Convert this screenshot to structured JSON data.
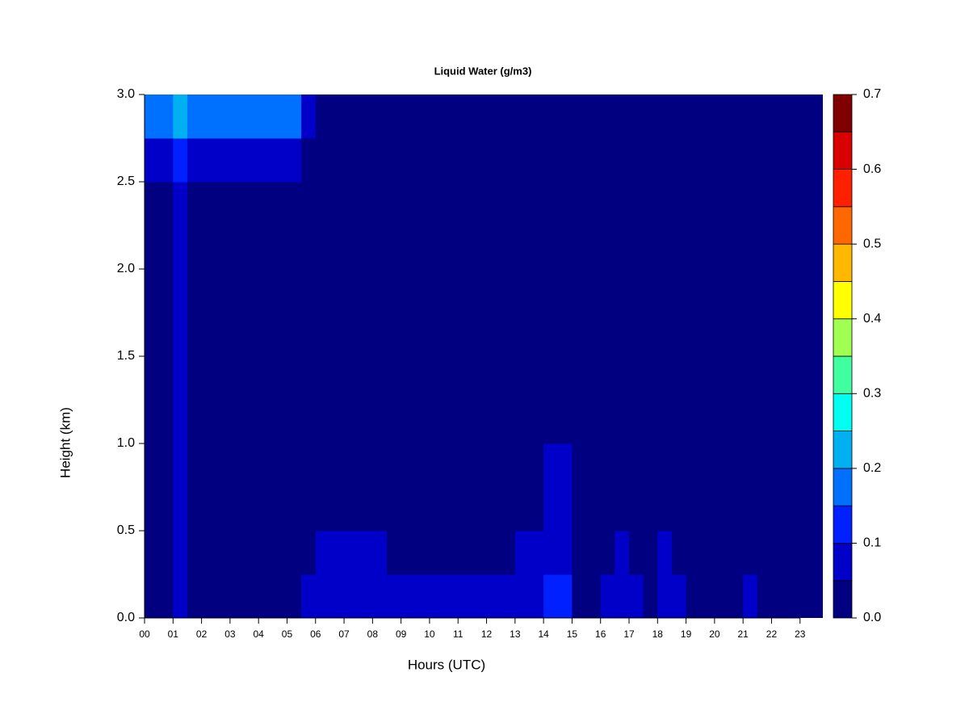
{
  "chart_data": {
    "type": "heatmap",
    "title": "Liquid Water (g/m3)",
    "x_label": "Hours (UTC)",
    "y_label": "Height (km)",
    "x": [
      0.25,
      0.75,
      1.25,
      1.75,
      2.25,
      2.75,
      3.25,
      3.75,
      4.25,
      4.75,
      5.25,
      5.75,
      6.25,
      6.75,
      7.25,
      7.75,
      8.25,
      8.75,
      9.25,
      9.75,
      10.25,
      10.75,
      11.25,
      11.75,
      12.25,
      12.75,
      13.25,
      13.75,
      14.25,
      14.75,
      15.25,
      15.75,
      16.25,
      16.75,
      17.25,
      17.75,
      18.25,
      18.75,
      19.25,
      19.75,
      20.25,
      20.75,
      21.25,
      21.75,
      22.25,
      22.75,
      23.25,
      23.75
    ],
    "y": [
      0.125,
      0.375,
      0.625,
      0.875,
      1.125,
      1.375,
      1.625,
      1.875,
      2.125,
      2.375,
      2.625,
      2.875
    ],
    "z": [
      [
        0.02,
        0.02,
        0.06,
        0.02,
        0.02,
        0.02,
        0.02,
        0.02,
        0.02,
        0.02,
        0.02,
        0.06,
        0.08,
        0.08,
        0.08,
        0.08,
        0.08,
        0.08,
        0.08,
        0.06,
        0.06,
        0.06,
        0.06,
        0.06,
        0.06,
        0.06,
        0.09,
        0.09,
        0.12,
        0.12,
        0.02,
        0.02,
        0.06,
        0.06,
        0.05,
        0.02,
        0.07,
        0.07,
        0.02,
        0.02,
        0.02,
        0.02,
        0.06,
        0.02,
        0.02,
        0.02,
        0.02,
        0.02
      ],
      [
        0.02,
        0.02,
        0.06,
        0.02,
        0.02,
        0.02,
        0.02,
        0.02,
        0.02,
        0.02,
        0.02,
        0.02,
        0.06,
        0.06,
        0.06,
        0.06,
        0.06,
        0.02,
        0.02,
        0.02,
        0.02,
        0.02,
        0.02,
        0.02,
        0.02,
        0.02,
        0.06,
        0.06,
        0.06,
        0.06,
        0.02,
        0.02,
        0.02,
        0.05,
        0.02,
        0.02,
        0.05,
        0.02,
        0.02,
        0.02,
        0.02,
        0.02,
        0.02,
        0.02,
        0.02,
        0.02,
        0.02,
        0.02
      ],
      [
        0.02,
        0.02,
        0.06,
        0.02,
        0.02,
        0.02,
        0.02,
        0.02,
        0.02,
        0.02,
        0.02,
        0.02,
        0.02,
        0.02,
        0.02,
        0.02,
        0.02,
        0.02,
        0.02,
        0.02,
        0.02,
        0.02,
        0.02,
        0.02,
        0.02,
        0.02,
        0.02,
        0.02,
        0.06,
        0.06,
        0.02,
        0.02,
        0.02,
        0.02,
        0.02,
        0.02,
        0.02,
        0.02,
        0.02,
        0.02,
        0.02,
        0.02,
        0.02,
        0.02,
        0.02,
        0.02,
        0.02,
        0.02
      ],
      [
        0.02,
        0.02,
        0.06,
        0.02,
        0.02,
        0.02,
        0.02,
        0.02,
        0.02,
        0.02,
        0.02,
        0.02,
        0.02,
        0.02,
        0.02,
        0.02,
        0.02,
        0.02,
        0.02,
        0.02,
        0.02,
        0.02,
        0.02,
        0.02,
        0.02,
        0.02,
        0.02,
        0.02,
        0.06,
        0.06,
        0.02,
        0.02,
        0.02,
        0.02,
        0.02,
        0.02,
        0.02,
        0.02,
        0.02,
        0.02,
        0.02,
        0.02,
        0.02,
        0.02,
        0.02,
        0.02,
        0.02,
        0.02
      ],
      [
        0.02,
        0.02,
        0.06,
        0.02,
        0.02,
        0.02,
        0.02,
        0.02,
        0.02,
        0.02,
        0.02,
        0.02,
        0.02,
        0.02,
        0.02,
        0.02,
        0.02,
        0.02,
        0.02,
        0.02,
        0.02,
        0.02,
        0.02,
        0.02,
        0.02,
        0.02,
        0.02,
        0.02,
        0.02,
        0.02,
        0.02,
        0.02,
        0.02,
        0.02,
        0.02,
        0.02,
        0.02,
        0.02,
        0.02,
        0.02,
        0.02,
        0.02,
        0.02,
        0.02,
        0.02,
        0.02,
        0.02,
        0.02
      ],
      [
        0.02,
        0.02,
        0.06,
        0.02,
        0.02,
        0.02,
        0.02,
        0.02,
        0.02,
        0.02,
        0.02,
        0.02,
        0.02,
        0.02,
        0.02,
        0.02,
        0.02,
        0.02,
        0.02,
        0.02,
        0.02,
        0.02,
        0.02,
        0.02,
        0.02,
        0.02,
        0.02,
        0.02,
        0.02,
        0.02,
        0.02,
        0.02,
        0.02,
        0.02,
        0.02,
        0.02,
        0.02,
        0.02,
        0.02,
        0.02,
        0.02,
        0.02,
        0.02,
        0.02,
        0.02,
        0.02,
        0.02,
        0.02
      ],
      [
        0.02,
        0.02,
        0.06,
        0.02,
        0.02,
        0.02,
        0.02,
        0.02,
        0.02,
        0.02,
        0.02,
        0.02,
        0.02,
        0.02,
        0.02,
        0.02,
        0.02,
        0.02,
        0.02,
        0.02,
        0.02,
        0.02,
        0.02,
        0.02,
        0.02,
        0.02,
        0.02,
        0.02,
        0.02,
        0.02,
        0.02,
        0.02,
        0.02,
        0.02,
        0.02,
        0.02,
        0.02,
        0.02,
        0.02,
        0.02,
        0.02,
        0.02,
        0.02,
        0.02,
        0.02,
        0.02,
        0.02,
        0.02
      ],
      [
        0.02,
        0.02,
        0.06,
        0.02,
        0.02,
        0.02,
        0.02,
        0.02,
        0.02,
        0.02,
        0.02,
        0.02,
        0.02,
        0.02,
        0.02,
        0.02,
        0.02,
        0.02,
        0.02,
        0.02,
        0.02,
        0.02,
        0.02,
        0.02,
        0.02,
        0.02,
        0.02,
        0.02,
        0.02,
        0.02,
        0.02,
        0.02,
        0.02,
        0.02,
        0.02,
        0.02,
        0.02,
        0.02,
        0.02,
        0.02,
        0.02,
        0.02,
        0.02,
        0.02,
        0.02,
        0.02,
        0.02,
        0.02
      ],
      [
        0.02,
        0.02,
        0.06,
        0.02,
        0.02,
        0.02,
        0.02,
        0.02,
        0.02,
        0.02,
        0.02,
        0.02,
        0.02,
        0.02,
        0.02,
        0.02,
        0.02,
        0.02,
        0.02,
        0.02,
        0.02,
        0.02,
        0.02,
        0.02,
        0.02,
        0.02,
        0.02,
        0.02,
        0.02,
        0.02,
        0.02,
        0.02,
        0.02,
        0.02,
        0.02,
        0.02,
        0.02,
        0.02,
        0.02,
        0.02,
        0.02,
        0.02,
        0.02,
        0.02,
        0.02,
        0.02,
        0.02,
        0.02
      ],
      [
        0.02,
        0.02,
        0.06,
        0.02,
        0.02,
        0.02,
        0.02,
        0.02,
        0.02,
        0.02,
        0.02,
        0.02,
        0.02,
        0.02,
        0.02,
        0.02,
        0.02,
        0.02,
        0.02,
        0.02,
        0.02,
        0.02,
        0.02,
        0.02,
        0.02,
        0.02,
        0.02,
        0.02,
        0.02,
        0.02,
        0.02,
        0.02,
        0.02,
        0.02,
        0.02,
        0.02,
        0.02,
        0.02,
        0.02,
        0.02,
        0.02,
        0.02,
        0.02,
        0.02,
        0.02,
        0.02,
        0.02,
        0.02
      ],
      [
        0.07,
        0.07,
        0.1,
        0.07,
        0.07,
        0.07,
        0.07,
        0.07,
        0.07,
        0.07,
        0.07,
        0.03,
        0.02,
        0.02,
        0.02,
        0.02,
        0.02,
        0.02,
        0.02,
        0.02,
        0.02,
        0.02,
        0.02,
        0.02,
        0.02,
        0.02,
        0.02,
        0.02,
        0.02,
        0.04,
        0.02,
        0.02,
        0.02,
        0.02,
        0.02,
        0.02,
        0.02,
        0.02,
        0.02,
        0.02,
        0.02,
        0.02,
        0.02,
        0.02,
        0.02,
        0.02,
        0.02,
        0.02
      ],
      [
        0.15,
        0.15,
        0.2,
        0.15,
        0.15,
        0.15,
        0.15,
        0.15,
        0.15,
        0.15,
        0.15,
        0.06,
        0.02,
        0.02,
        0.02,
        0.02,
        0.02,
        0.02,
        0.02,
        0.02,
        0.02,
        0.02,
        0.02,
        0.02,
        0.02,
        0.02,
        0.02,
        0.02,
        0.02,
        0.04,
        0.02,
        0.02,
        0.02,
        0.02,
        0.02,
        0.02,
        0.02,
        0.02,
        0.02,
        0.02,
        0.02,
        0.02,
        0.02,
        0.02,
        0.02,
        0.02,
        0.02,
        0.02
      ]
    ],
    "xlim": [
      0,
      23.8
    ],
    "ylim": [
      0,
      3
    ],
    "xticks": [
      {
        "value": 0,
        "label": "00"
      },
      {
        "value": 1,
        "label": "01"
      },
      {
        "value": 2,
        "label": "02"
      },
      {
        "value": 3,
        "label": "03"
      },
      {
        "value": 4,
        "label": "04"
      },
      {
        "value": 5,
        "label": "05"
      },
      {
        "value": 6,
        "label": "06"
      },
      {
        "value": 7,
        "label": "07"
      },
      {
        "value": 8,
        "label": "08"
      },
      {
        "value": 9,
        "label": "09"
      },
      {
        "value": 10,
        "label": "10"
      },
      {
        "value": 11,
        "label": "11"
      },
      {
        "value": 12,
        "label": "12"
      },
      {
        "value": 13,
        "label": "13"
      },
      {
        "value": 14,
        "label": "14"
      },
      {
        "value": 15,
        "label": "15"
      },
      {
        "value": 16,
        "label": "16"
      },
      {
        "value": 17,
        "label": "17"
      },
      {
        "value": 18,
        "label": "18"
      },
      {
        "value": 19,
        "label": "19"
      },
      {
        "value": 20,
        "label": "20"
      },
      {
        "value": 21,
        "label": "21"
      },
      {
        "value": 22,
        "label": "22"
      },
      {
        "value": 23,
        "label": "23"
      }
    ],
    "yticks": [
      {
        "value": 0,
        "label": "0.0"
      },
      {
        "value": 0.5,
        "label": "0.5"
      },
      {
        "value": 1,
        "label": "1.0"
      },
      {
        "value": 1.5,
        "label": "1.5"
      },
      {
        "value": 2,
        "label": "2.0"
      },
      {
        "value": 2.5,
        "label": "2.5"
      },
      {
        "value": 3,
        "label": "3.0"
      }
    ],
    "levels": [
      0,
      0.05,
      0.1,
      0.15,
      0.2,
      0.25,
      0.3,
      0.35,
      0.4,
      0.45,
      0.5,
      0.55,
      0.6,
      0.65,
      0.7
    ],
    "colors": [
      "#000080",
      "#0000C8",
      "#0020FF",
      "#0070FF",
      "#00B0F0",
      "#00FFF0",
      "#40FFA0",
      "#A0FF50",
      "#FFFF00",
      "#FFB800",
      "#FF6800",
      "#FF2000",
      "#D80000",
      "#800000"
    ],
    "colorbar_ticks": [
      {
        "value": 0,
        "label": "0.0"
      },
      {
        "value": 0.1,
        "label": "0.1"
      },
      {
        "value": 0.2,
        "label": "0.2"
      },
      {
        "value": 0.3,
        "label": "0.3"
      },
      {
        "value": 0.4,
        "label": "0.4"
      },
      {
        "value": 0.5,
        "label": "0.5"
      },
      {
        "value": 0.6,
        "label": "0.6"
      },
      {
        "value": 0.7,
        "label": "0.7"
      }
    ]
  }
}
